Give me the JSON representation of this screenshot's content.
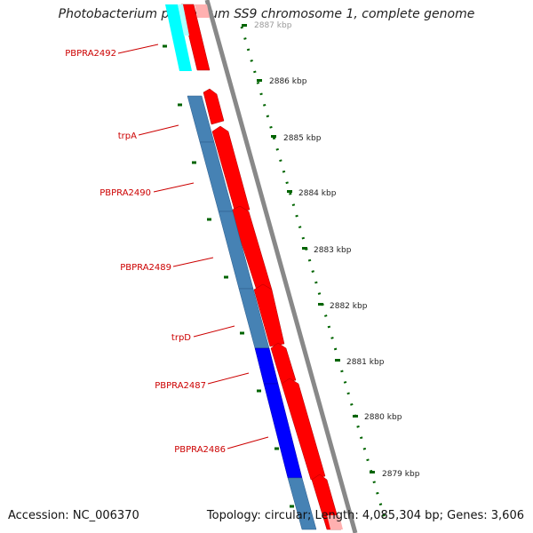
{
  "title": "Photobacterium profundum SS9 chromosome 1, complete genome",
  "footer": {
    "accession": "Accession: NC_006370",
    "topology": "Topology: circular; Length: 4,085,304 bp; Genes: 3,606"
  },
  "colors": {
    "forward_cds": "#ff0000",
    "reverse_cds": "#4682b4",
    "reverse_cds_dark": "#0000ff",
    "rna_cyan": "#00ffff",
    "backbone": "#888888",
    "ticks": "#006400",
    "label": "#cc0000"
  },
  "ruler": {
    "labels": [
      "2887 kbp",
      "2886 kbp",
      "2885 kbp",
      "2884 kbp",
      "2883 kbp",
      "2882 kbp",
      "2881 kbp",
      "2880 kbp",
      "2879 kbp"
    ]
  },
  "gene_labels": [
    "PBPRA2492",
    "trpA",
    "PBPRA2490",
    "PBPRA2489",
    "trpD",
    "PBPRA2487",
    "PBPRA2486"
  ]
}
